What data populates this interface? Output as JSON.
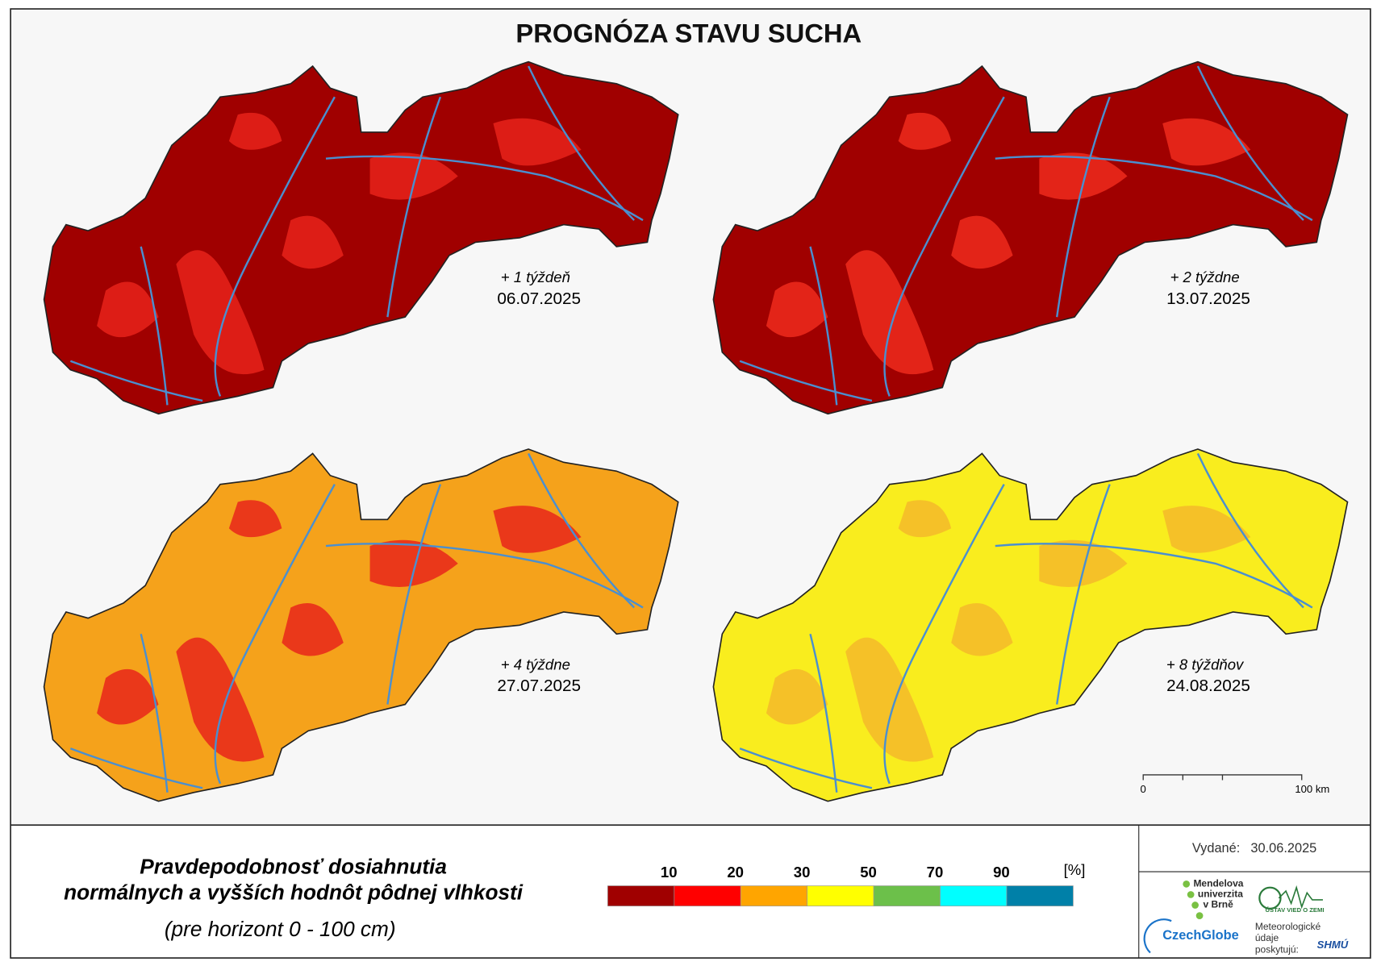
{
  "title": "PROGNÓZA STAVU SUCHA",
  "panels": [
    {
      "label": "+ 1 týždeň",
      "date": "06.07.2025",
      "color": "#a00000",
      "secondary_color": "#e8221a"
    },
    {
      "label": "+ 2 týždne",
      "date": "13.07.2025",
      "color": "#a00000",
      "secondary_color": "#ee2a1c"
    },
    {
      "label": "+ 4 týždne",
      "date": "27.07.2025",
      "color": "#f5a21b",
      "secondary_color": "#e8261a"
    },
    {
      "label": "+ 8 týždňov",
      "date": "24.08.2025",
      "color": "#f9ed1e",
      "secondary_color": "#f5b92a"
    }
  ],
  "scale_bar": {
    "start": "0",
    "end": "100 km"
  },
  "legend": {
    "title_lines": [
      "Pravdepodobnosť dosiahnutia",
      "normálnych a vyšších hodnôt pôdnej vlhkosti"
    ],
    "subtitle": "(pre horizont 0 - 100 cm)",
    "unit": "[%]",
    "ticks": [
      10,
      20,
      30,
      50,
      70,
      90
    ],
    "colors": [
      "#a00000",
      "#ff0000",
      "#ffa500",
      "#ffff00",
      "#6cc04a",
      "#00ffff",
      "#0080a8"
    ]
  },
  "issued": {
    "label": "Vydané:",
    "date": "30.06.2025"
  },
  "logos": {
    "mendel": [
      "Mendelova",
      "univerzita",
      "v Brně"
    ],
    "czechglobe": "CzechGlobe",
    "uvz": "ÚSTAV VIED O ZEMI",
    "meteo": [
      "Meteorologické",
      "údaje",
      "poskytujú:"
    ],
    "shmu": "SHMÚ"
  }
}
